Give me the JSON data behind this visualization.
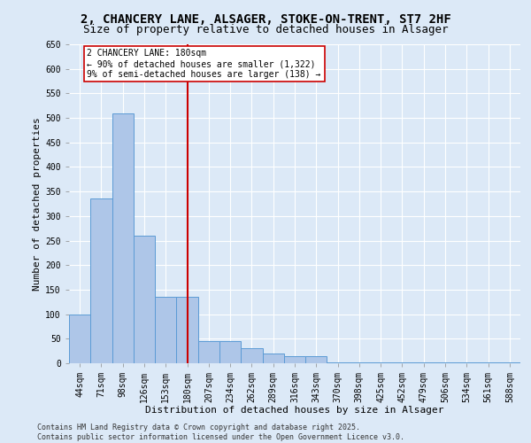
{
  "title_line1": "2, CHANCERY LANE, ALSAGER, STOKE-ON-TRENT, ST7 2HF",
  "title_line2": "Size of property relative to detached houses in Alsager",
  "xlabel": "Distribution of detached houses by size in Alsager",
  "ylabel": "Number of detached properties",
  "categories": [
    "44sqm",
    "71sqm",
    "98sqm",
    "126sqm",
    "153sqm",
    "180sqm",
    "207sqm",
    "234sqm",
    "262sqm",
    "289sqm",
    "316sqm",
    "343sqm",
    "370sqm",
    "398sqm",
    "425sqm",
    "452sqm",
    "479sqm",
    "506sqm",
    "534sqm",
    "561sqm",
    "588sqm"
  ],
  "values": [
    100,
    335,
    510,
    260,
    135,
    135,
    45,
    45,
    30,
    20,
    15,
    15,
    1,
    1,
    1,
    1,
    1,
    1,
    1,
    1,
    1
  ],
  "bar_color": "#aec6e8",
  "bar_edge_color": "#5b9bd5",
  "vline_x": 5,
  "vline_color": "#cc0000",
  "annotation_text": "2 CHANCERY LANE: 180sqm\n← 90% of detached houses are smaller (1,322)\n9% of semi-detached houses are larger (138) →",
  "annotation_box_color": "#ffffff",
  "annotation_box_edge": "#cc0000",
  "ylim": [
    0,
    650
  ],
  "yticks": [
    0,
    50,
    100,
    150,
    200,
    250,
    300,
    350,
    400,
    450,
    500,
    550,
    600,
    650
  ],
  "background_color": "#dce9f7",
  "grid_color": "#ffffff",
  "footnote": "Contains HM Land Registry data © Crown copyright and database right 2025.\nContains public sector information licensed under the Open Government Licence v3.0.",
  "title_fontsize": 10,
  "subtitle_fontsize": 9,
  "axis_label_fontsize": 8,
  "tick_fontsize": 7,
  "annot_fontsize": 7,
  "footnote_fontsize": 6
}
